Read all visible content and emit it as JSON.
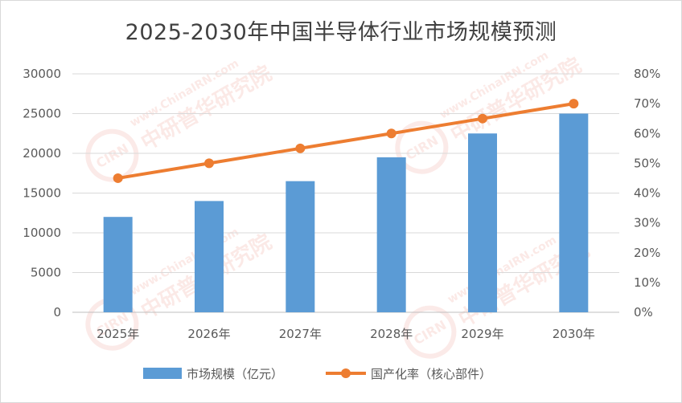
{
  "chart_data": {
    "type": "bar",
    "title": "2025-2030年中国半导体行业市场规模预测",
    "categories": [
      "2025年",
      "2026年",
      "2027年",
      "2028年",
      "2029年",
      "2030年"
    ],
    "series": [
      {
        "name": "市场规模（亿元）",
        "type": "bar",
        "axis": "left",
        "color": "#5b9bd5",
        "values": [
          12000,
          14000,
          16500,
          19500,
          22500,
          25000
        ]
      },
      {
        "name": "国产化率（核心部件）",
        "type": "line",
        "axis": "right",
        "color": "#ed7d31",
        "values": [
          45,
          50,
          55,
          60,
          65,
          70
        ]
      }
    ],
    "y_left": {
      "min": 0,
      "max": 30000,
      "ticks": [
        "0",
        "5000",
        "10000",
        "15000",
        "20000",
        "25000",
        "30000"
      ]
    },
    "y_right": {
      "min": 0,
      "max": 80,
      "ticks": [
        "0%",
        "10%",
        "20%",
        "30%",
        "40%",
        "50%",
        "60%",
        "70%",
        "80%"
      ]
    },
    "grid": true,
    "legend_position": "bottom"
  },
  "watermark": {
    "text_en": "www.ChinaIRN.com",
    "text_cn": "中研普华研究院",
    "logo": "CIRN"
  }
}
